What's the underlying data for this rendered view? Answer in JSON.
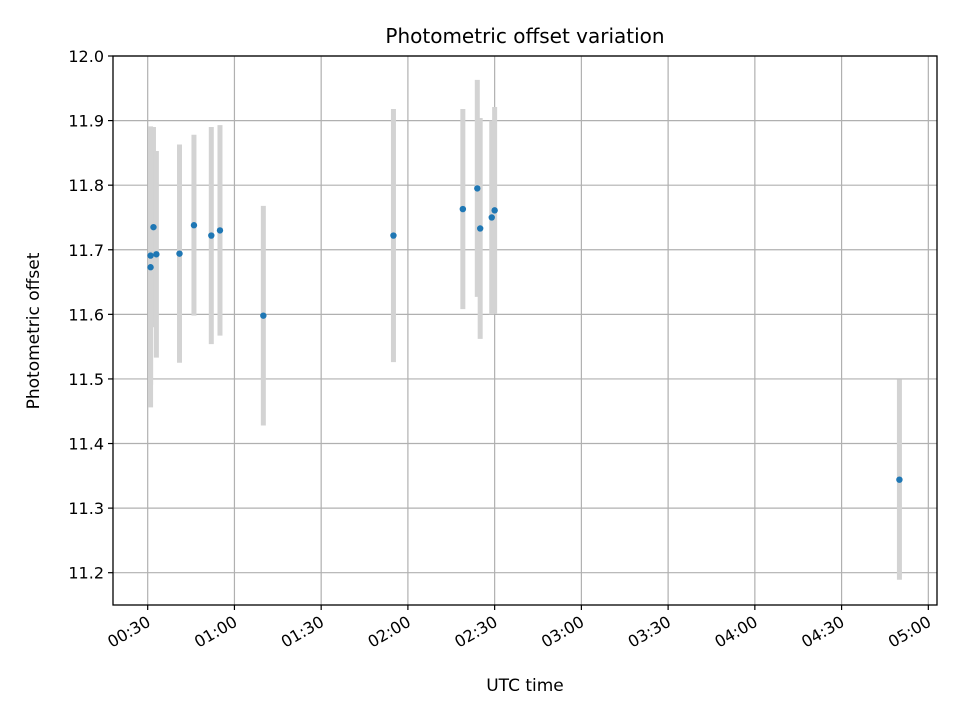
{
  "chart_data": {
    "type": "scatter",
    "title": "Photometric offset variation",
    "xlabel": "UTC time",
    "ylabel": "Photometric offset",
    "xlim": [
      "00:18",
      "05:03"
    ],
    "ylim": [
      11.15,
      12.0
    ],
    "x_ticks": [
      "00:30",
      "01:00",
      "01:30",
      "02:00",
      "02:30",
      "03:00",
      "03:30",
      "04:00",
      "04:30",
      "05:00"
    ],
    "y_ticks": [
      "11.2",
      "11.3",
      "11.4",
      "11.5",
      "11.6",
      "11.7",
      "11.8",
      "11.9",
      "12.0"
    ],
    "grid": true,
    "colors": {
      "point": "#1f77b4",
      "errorbar": "#d3d3d3",
      "grid": "#b0b0b0"
    },
    "points": [
      {
        "x": "00:31",
        "y": 11.673,
        "err": 0.217
      },
      {
        "x": "00:31",
        "y": 11.691,
        "err": 0.2
      },
      {
        "x": "00:32",
        "y": 11.735,
        "err": 0.155
      },
      {
        "x": "00:33",
        "y": 11.693,
        "err": 0.16
      },
      {
        "x": "00:41",
        "y": 11.694,
        "err": 0.169
      },
      {
        "x": "00:46",
        "y": 11.738,
        "err": 0.14
      },
      {
        "x": "00:52",
        "y": 11.722,
        "err": 0.168
      },
      {
        "x": "00:55",
        "y": 11.73,
        "err": 0.163
      },
      {
        "x": "01:10",
        "y": 11.598,
        "err": 0.17
      },
      {
        "x": "01:55",
        "y": 11.722,
        "err": 0.196
      },
      {
        "x": "02:19",
        "y": 11.763,
        "err": 0.155
      },
      {
        "x": "02:24",
        "y": 11.795,
        "err": 0.168
      },
      {
        "x": "02:25",
        "y": 11.733,
        "err": 0.171
      },
      {
        "x": "02:29",
        "y": 11.75,
        "err": 0.15
      },
      {
        "x": "02:30",
        "y": 11.761,
        "err": 0.16
      },
      {
        "x": "04:50",
        "y": 11.344,
        "err": 0.155
      }
    ]
  }
}
